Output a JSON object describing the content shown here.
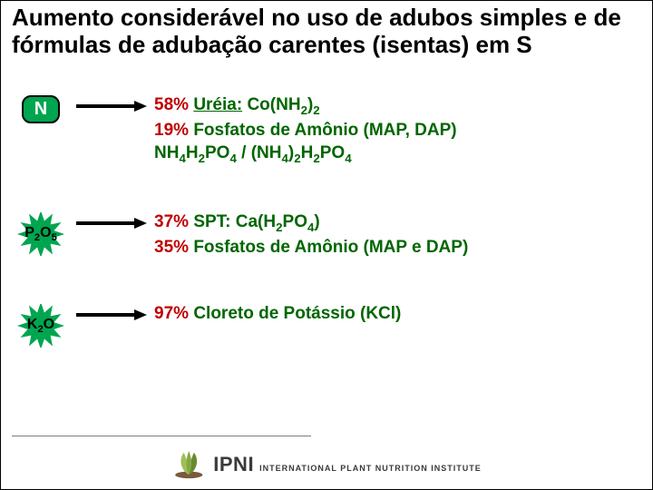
{
  "title": {
    "text": "Aumento considerável no uso de adubos simples e de fórmulas de adubação carentes (isentas) em S",
    "color": "#000000",
    "fontsize": 26
  },
  "rows": [
    {
      "badge": {
        "kind": "rect",
        "label": "N",
        "bg": "#00a54f",
        "fg": "#ffffff"
      },
      "lines": [
        {
          "pct": "58%",
          "rest_html": "<span class='ul'>Uréia:</span> Co(NH<sub>2</sub>)<sub>2</sub>"
        },
        {
          "pct": "19%",
          "rest_html": "Fosfatos de Amônio (MAP, DAP)"
        },
        {
          "pct": "",
          "rest_html": "NH<sub>4</sub>H<sub>2</sub>PO<sub>4</sub> / (NH<sub>4</sub>)<sub>2</sub>H<sub>2</sub>PO<sub>4</sub>"
        }
      ],
      "pct_color": "#c00000",
      "text_color": "#006600"
    },
    {
      "badge": {
        "kind": "star",
        "label_html": "P<sub>2</sub>O<sub>5</sub>",
        "bg": "#00a54f",
        "fg": "#000000"
      },
      "lines": [
        {
          "pct": "37%",
          "rest_html": "SPT: Ca(H<sub>2</sub>PO<sub>4</sub>)"
        },
        {
          "pct": "35%",
          "rest_html": "Fosfatos de Amônio (MAP e DAP)"
        }
      ],
      "pct_color": "#c00000",
      "text_color": "#006600"
    },
    {
      "badge": {
        "kind": "star",
        "label_html": "K<sub>2</sub>O",
        "bg": "#00a54f",
        "fg": "#000000"
      },
      "lines": [
        {
          "pct": "97%",
          "rest_html": "Cloreto de Potássio (KCl)"
        }
      ],
      "pct_color": "#c00000",
      "text_color": "#006600"
    }
  ],
  "arrow": {
    "color": "#000000",
    "length": 78,
    "stroke": 4
  },
  "logo": {
    "acronym": "IPNI",
    "subtitle": "INTERNATIONAL PLANT NUTRITION INSTITUTE",
    "leaf_light": "#9fbf5a",
    "leaf_dark": "#6a8a2f",
    "ground": "#7a5a3a"
  }
}
